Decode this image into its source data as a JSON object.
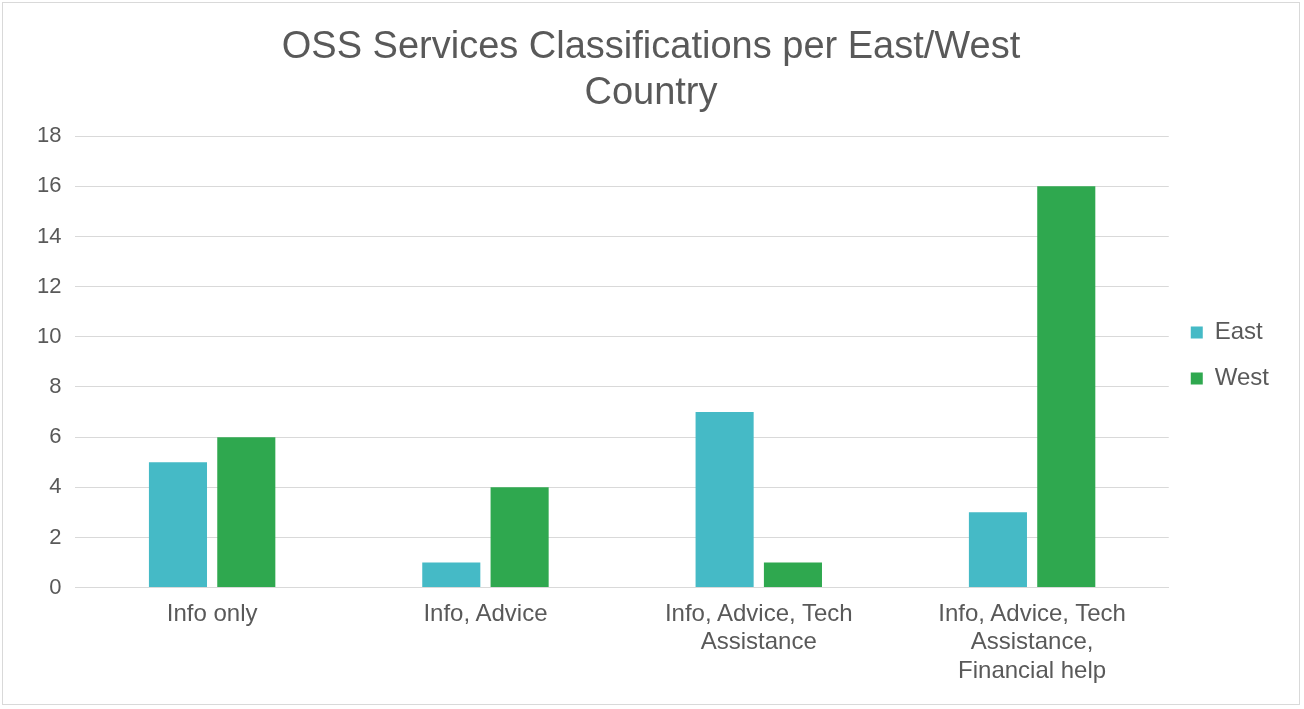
{
  "chart_data": {
    "type": "bar",
    "title": "OSS Services Classifications per East/West Country",
    "categories": [
      "Info only",
      "Info, Advice",
      "Info, Advice, Tech Assistance",
      "Info, Advice, Tech Assistance, Financial help"
    ],
    "series": [
      {
        "name": "East",
        "color": "#45bac6",
        "values": [
          5,
          1,
          7,
          3
        ]
      },
      {
        "name": "West",
        "color": "#2fa84f",
        "values": [
          6,
          4,
          1,
          16
        ]
      }
    ],
    "ylim": [
      0,
      18
    ],
    "yticks": [
      0,
      2,
      4,
      6,
      8,
      10,
      12,
      14,
      16,
      18
    ],
    "grid": "y",
    "legend": "right"
  }
}
